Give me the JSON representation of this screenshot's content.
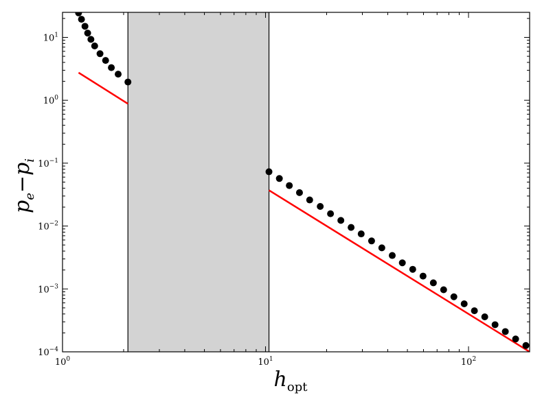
{
  "chart_data": {
    "type": "scatter",
    "title": "",
    "xlabel": {
      "base": "h",
      "sub": "opt"
    },
    "ylabel": {
      "a": "p",
      "a_sub": "e",
      "op": "−",
      "b": "p",
      "b_sub": "i"
    },
    "xscale": "log",
    "yscale": "log",
    "xlim": [
      1,
      200
    ],
    "ylim": [
      0.0001,
      25
    ],
    "grid": false,
    "legend": "none",
    "x_ticks": [
      {
        "base": "10",
        "exp": "0",
        "value": 1
      },
      {
        "base": "10",
        "exp": "1",
        "value": 10
      },
      {
        "base": "10",
        "exp": "2",
        "value": 100
      }
    ],
    "y_ticks": [
      {
        "base": "10",
        "exp": "−4",
        "value": 0.0001
      },
      {
        "base": "10",
        "exp": "−3",
        "value": 0.001
      },
      {
        "base": "10",
        "exp": "−2",
        "value": 0.01
      },
      {
        "base": "10",
        "exp": "−1",
        "value": 0.1
      },
      {
        "base": "10",
        "exp": "0",
        "value": 1
      },
      {
        "base": "10",
        "exp": "1",
        "value": 10
      }
    ],
    "shaded_region": {
      "x": [
        2.1,
        10.4
      ],
      "color": "#d3d3d3"
    },
    "points": {
      "color": "#000000",
      "left": {
        "x": [
          1.2,
          1.24,
          1.29,
          1.33,
          1.38,
          1.44,
          1.53,
          1.63,
          1.74,
          1.88,
          2.1
        ],
        "y": [
          24.5,
          19.4,
          15.0,
          11.7,
          9.3,
          7.3,
          5.5,
          4.3,
          3.3,
          2.6,
          1.95
        ]
      },
      "right": {
        "x": [
          10.4,
          11.7,
          13.1,
          14.7,
          16.5,
          18.6,
          20.9,
          23.5,
          26.4,
          29.6,
          33.3,
          37.4,
          42.1,
          47.2,
          53.1,
          59.7,
          67.1,
          75.4,
          84.7,
          95.2,
          106.9,
          120.2,
          135.1,
          151.8,
          170.6,
          191.7
        ],
        "y": [
          0.073,
          0.057,
          0.044,
          0.034,
          0.026,
          0.0205,
          0.0157,
          0.0123,
          0.0095,
          0.0075,
          0.0058,
          0.0045,
          0.0034,
          0.0026,
          0.00205,
          0.0016,
          0.00125,
          0.00097,
          0.00075,
          0.00058,
          0.00045,
          0.00036,
          0.00027,
          0.00021,
          0.00016,
          0.000126
        ]
      }
    },
    "lines": {
      "color": "#ff0000",
      "left": {
        "x": [
          1.2,
          2.1
        ],
        "y": [
          2.75,
          0.88
        ]
      },
      "right": {
        "x": [
          10.4,
          200
        ],
        "y": [
          0.037,
          0.0001
        ]
      }
    }
  }
}
